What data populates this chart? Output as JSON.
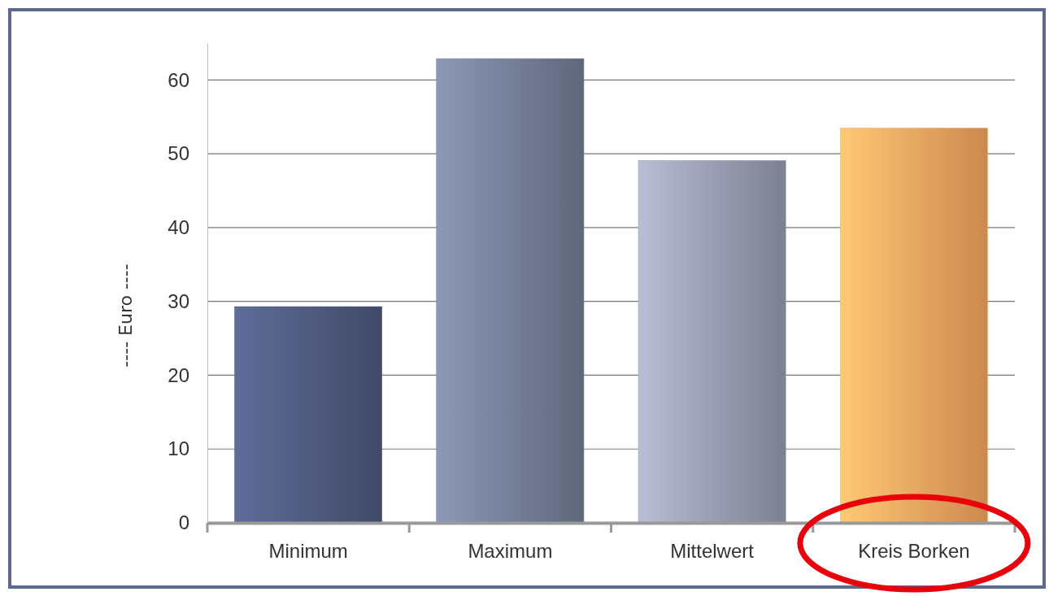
{
  "chart_data": {
    "type": "bar",
    "ylabel": "---- Euro ----",
    "categories": [
      "Minimum",
      "Maximum",
      "Mittelwert",
      "Kreis Borken"
    ],
    "values": [
      29.3,
      62.9,
      49.1,
      53.5
    ],
    "colors": [
      "#4f5b80",
      "#767f99",
      "#9b9eb3",
      "#ffa862"
    ],
    "ylim": [
      0,
      65
    ],
    "yticks": [
      0,
      10,
      20,
      30,
      40,
      50,
      60
    ],
    "grid": "y"
  }
}
